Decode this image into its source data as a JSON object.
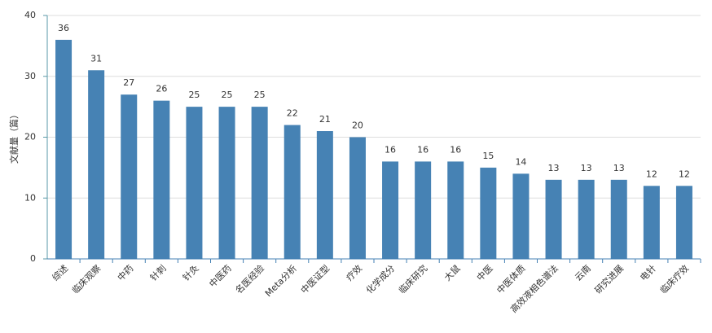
{
  "chart_data": {
    "type": "bar",
    "y_label": "文献量（篇）",
    "categories": [
      "综述",
      "临床观察",
      "中药",
      "针刺",
      "针灸",
      "中医药",
      "名医经验",
      "Meta分析",
      "中医证型",
      "疗效",
      "化学成分",
      "临床研究",
      "大鼠",
      "中医",
      "中医体质",
      "高效液相色谱法",
      "云南",
      "研究进展",
      "电针",
      "临床疗效"
    ],
    "values": [
      36,
      31,
      27,
      26,
      25,
      25,
      25,
      22,
      21,
      20,
      16,
      16,
      16,
      15,
      14,
      13,
      13,
      13,
      12,
      12
    ],
    "color": "#4682b4",
    "ylim": [
      0,
      40
    ],
    "yticks": [
      0,
      10,
      20,
      30,
      40
    ],
    "grid": true
  }
}
